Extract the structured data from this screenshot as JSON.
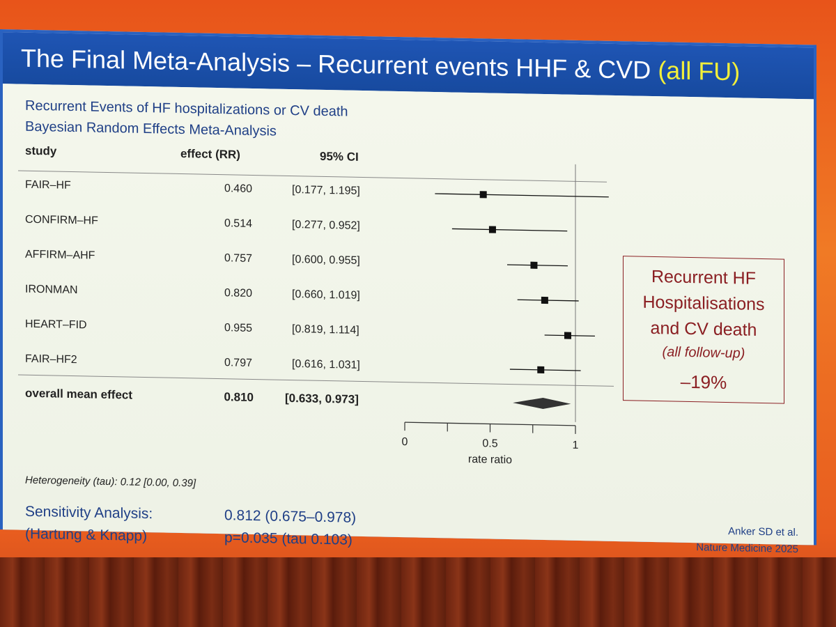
{
  "slide": {
    "title_main": "The Final Meta-Analysis – Recurrent events HHF & CVD ",
    "title_highlight": "(all FU)",
    "subtitle_1": "Recurrent Events of HF hospitalizations or CV death",
    "subtitle_2": "Bayesian Random Effects Meta-Analysis",
    "headers": {
      "study": "study",
      "effect": "effect (RR)",
      "ci": "95% CI"
    },
    "heterogeneity": "Heterogeneity (tau): 0.12 [0.00, 0.39]",
    "sensitivity": {
      "label_1": "Sensitivity Analysis:",
      "label_2": "(Hartung & Knapp)",
      "value_1": "0.812 (0.675–0.978)",
      "value_2": "p=0.035 (tau 0.103)"
    },
    "callout": {
      "line_1": "Recurrent HF",
      "line_2": "Hospitalisations",
      "line_3": "and CV death",
      "line_4": "(all follow-up)",
      "percent": "–19%"
    },
    "citation": {
      "line_1": "Anker SD et al.",
      "line_2": "Nature Medicine 2025"
    }
  },
  "chart_data": {
    "type": "forest",
    "x_axis": {
      "label": "rate ratio",
      "ticks": [
        "0",
        "0.5",
        "1"
      ],
      "range": [
        0,
        1.0
      ],
      "reference_line": 1
    },
    "studies": [
      {
        "name": "FAIR–HF",
        "effect": 0.46,
        "effect_text": "0.460",
        "ci_low": 0.177,
        "ci_high": 1.195,
        "ci_text": "[0.177, 1.195]"
      },
      {
        "name": "CONFIRM–HF",
        "effect": 0.514,
        "effect_text": "0.514",
        "ci_low": 0.277,
        "ci_high": 0.952,
        "ci_text": "[0.277, 0.952]"
      },
      {
        "name": "AFFIRM–AHF",
        "effect": 0.757,
        "effect_text": "0.757",
        "ci_low": 0.6,
        "ci_high": 0.955,
        "ci_text": "[0.600, 0.955]"
      },
      {
        "name": "IRONMAN",
        "effect": 0.82,
        "effect_text": "0.820",
        "ci_low": 0.66,
        "ci_high": 1.019,
        "ci_text": "[0.660, 1.019]"
      },
      {
        "name": "HEART–FID",
        "effect": 0.955,
        "effect_text": "0.955",
        "ci_low": 0.819,
        "ci_high": 1.114,
        "ci_text": "[0.819, 1.114]"
      },
      {
        "name": "FAIR–HF2",
        "effect": 0.797,
        "effect_text": "0.797",
        "ci_low": 0.616,
        "ci_high": 1.031,
        "ci_text": "[0.616, 1.031]"
      }
    ],
    "overall": {
      "name": "overall mean effect",
      "effect": 0.81,
      "effect_text": "0.810",
      "ci_low": 0.633,
      "ci_high": 0.973,
      "ci_text": "[0.633, 0.973]"
    }
  }
}
